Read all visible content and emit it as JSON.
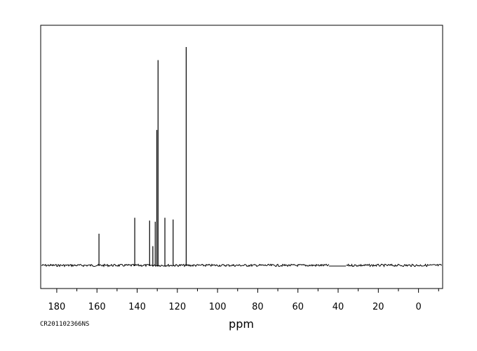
{
  "sample_id": "CR201102366NS",
  "chart_data": {
    "type": "line",
    "title": "",
    "xlabel": "ppm",
    "ylabel": "",
    "xlim": [
      188,
      -12
    ],
    "x_reversed": true,
    "ylim": [
      -0.12,
      1.02
    ],
    "x_ticks": [
      180,
      160,
      140,
      120,
      100,
      80,
      60,
      40,
      20,
      0
    ],
    "x_minor_step": 10,
    "grid": false,
    "legend": "none",
    "baseline_gap": [
      44.5,
      36.0
    ],
    "peaks": [
      {
        "ppm": 159.0,
        "intensity": 0.145
      },
      {
        "ppm": 141.2,
        "intensity": 0.218
      },
      {
        "ppm": 133.8,
        "intensity": 0.205
      },
      {
        "ppm": 132.2,
        "intensity": 0.088
      },
      {
        "ppm": 131.0,
        "intensity": 0.2
      },
      {
        "ppm": 130.2,
        "intensity": 0.62
      },
      {
        "ppm": 129.6,
        "intensity": 0.94
      },
      {
        "ppm": 126.2,
        "intensity": 0.218
      },
      {
        "ppm": 122.1,
        "intensity": 0.21
      },
      {
        "ppm": 115.6,
        "intensity": 1.0
      }
    ],
    "colors": {
      "line": "#000000",
      "frame": "#000000",
      "background": "#ffffff"
    }
  }
}
